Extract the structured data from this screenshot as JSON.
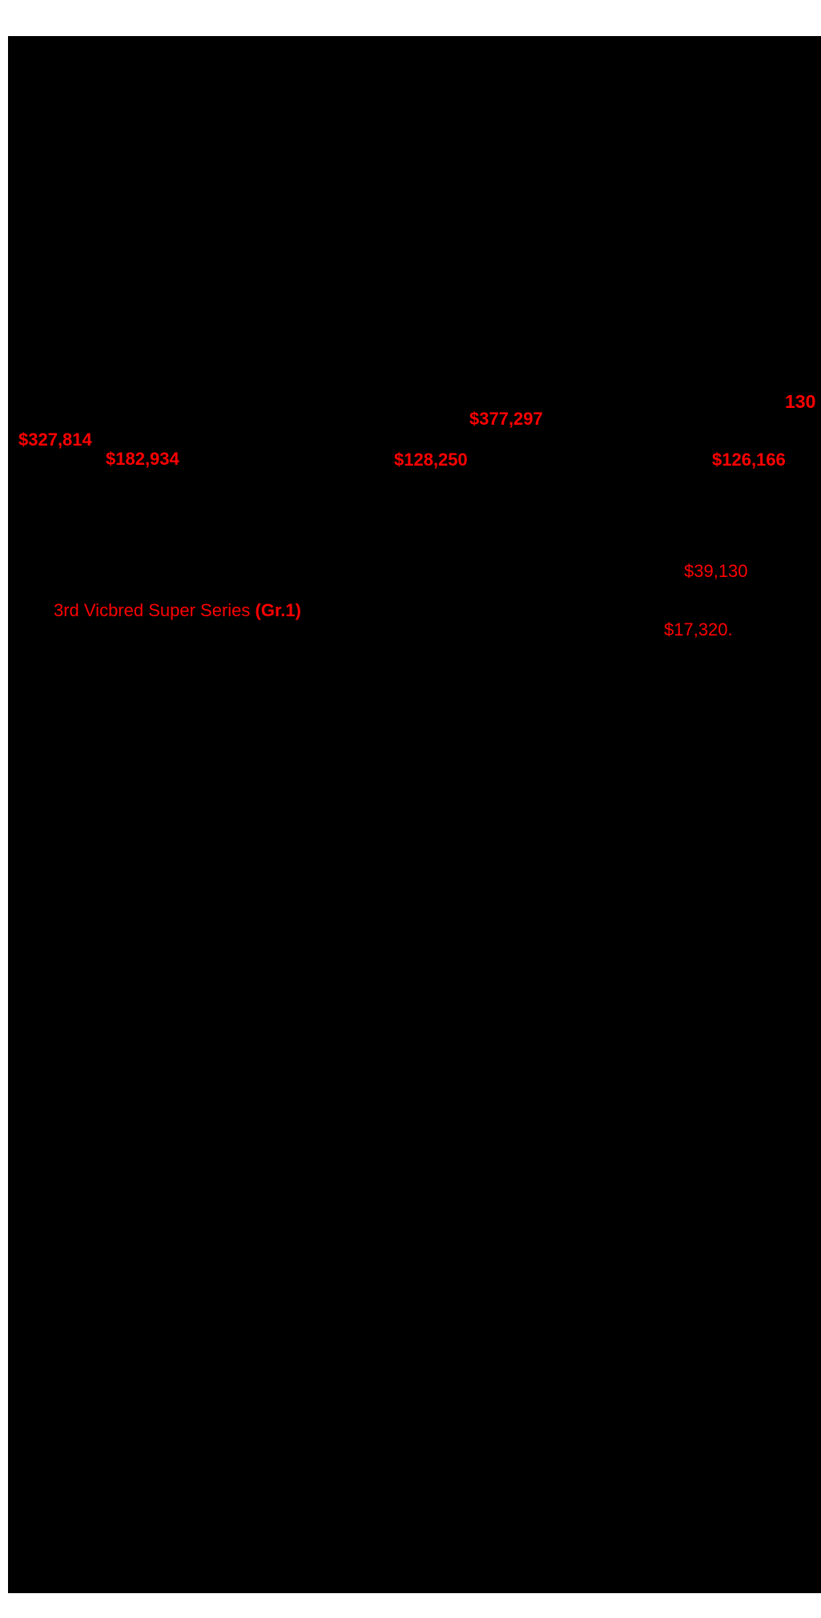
{
  "colors": {
    "accent_red": "#ff0000",
    "page_background": "#000000",
    "margin_background": "#ffffff"
  },
  "lot": {
    "number": "130"
  },
  "earnings": {
    "amount_a": "$377,297",
    "amount_b": "$327,814",
    "amount_c": "$182,934",
    "amount_d": "$128,250",
    "amount_e": "$126,166",
    "amount_f": "$39,130",
    "amount_g": "$17,320."
  },
  "race": {
    "name": "3rd Vicbred Super Series ",
    "grade": "(Gr.1)"
  }
}
